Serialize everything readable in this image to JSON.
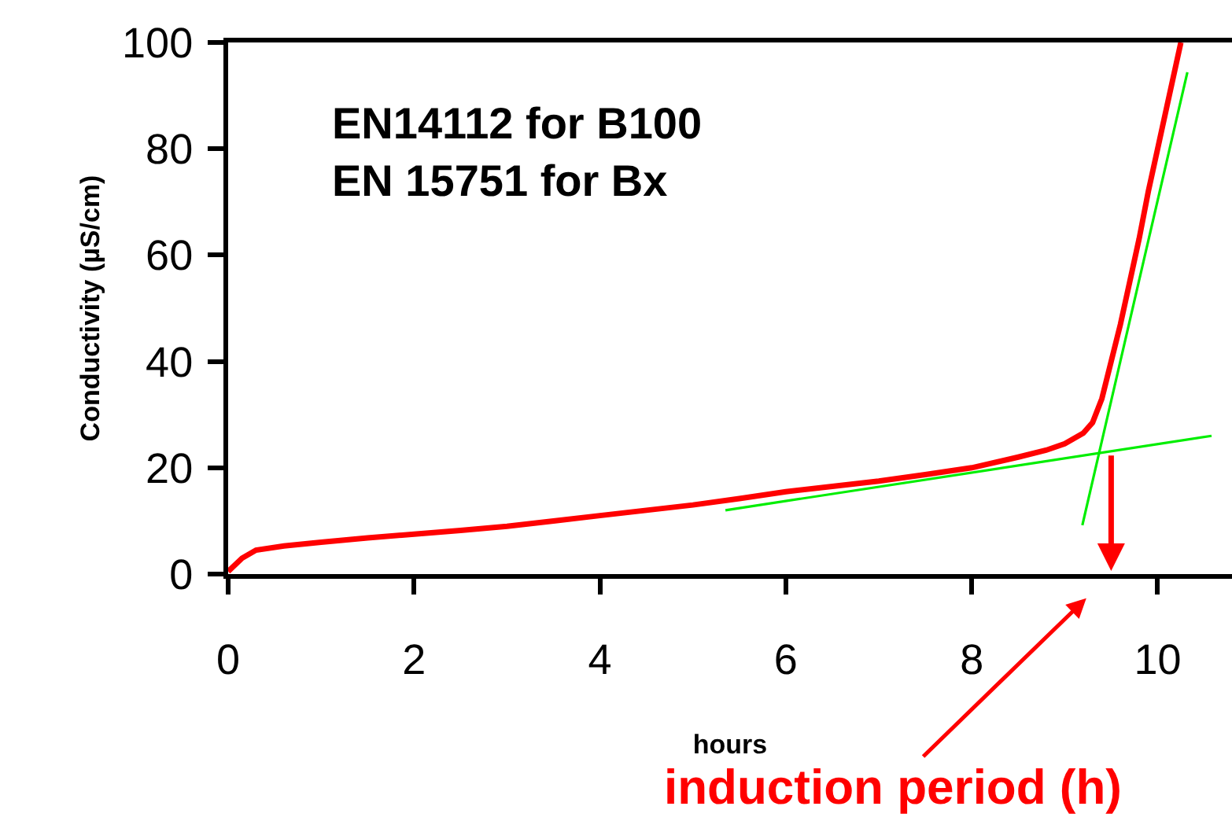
{
  "chart_data": {
    "type": "line",
    "xlabel": "hours",
    "ylabel": "Conductivity (µS/cm)",
    "xlim": [
      0,
      10.8
    ],
    "xticks": [
      0,
      2,
      4,
      6,
      8,
      10
    ],
    "ylim": [
      0,
      100
    ],
    "yticks": [
      0,
      20,
      40,
      60,
      80,
      100
    ],
    "grid": false,
    "marker": "none",
    "line_style": "solid",
    "series": [
      {
        "color": "#ff0000",
        "x": [
          0,
          0.15,
          0.3,
          0.6,
          1,
          1.5,
          2,
          2.5,
          3,
          3.5,
          4,
          4.5,
          5,
          5.5,
          6,
          6.5,
          7,
          7.5,
          8,
          8.5,
          8.8,
          9,
          9.2,
          9.3,
          9.4,
          9.5,
          9.6,
          9.7,
          9.8,
          9.9,
          10,
          10.1,
          10.2,
          10.25
        ],
        "values": [
          0.5,
          3,
          4.5,
          5.3,
          6,
          6.8,
          7.5,
          8.2,
          9,
          10,
          11,
          12,
          13,
          14.2,
          15.5,
          16.5,
          17.5,
          18.7,
          20,
          22,
          23.3,
          24.5,
          26.5,
          28.5,
          33,
          40,
          47,
          55,
          63,
          72,
          80,
          88,
          96,
          100
        ]
      },
      {
        "color": "#00ee00",
        "x": [
          5.35,
          10.58
        ],
        "values": [
          12,
          26
        ]
      },
      {
        "color": "#00ee00",
        "x": [
          9.19,
          10.32
        ],
        "values": [
          9.2,
          94.4
        ]
      }
    ],
    "ref_lines": [
      {
        "axis": "x",
        "value": 9.5,
        "label": "induction period (h)",
        "color": "#ff0000"
      }
    ],
    "annotations": [
      "EN14112 for B100\nEN 15751 for Bx"
    ]
  }
}
